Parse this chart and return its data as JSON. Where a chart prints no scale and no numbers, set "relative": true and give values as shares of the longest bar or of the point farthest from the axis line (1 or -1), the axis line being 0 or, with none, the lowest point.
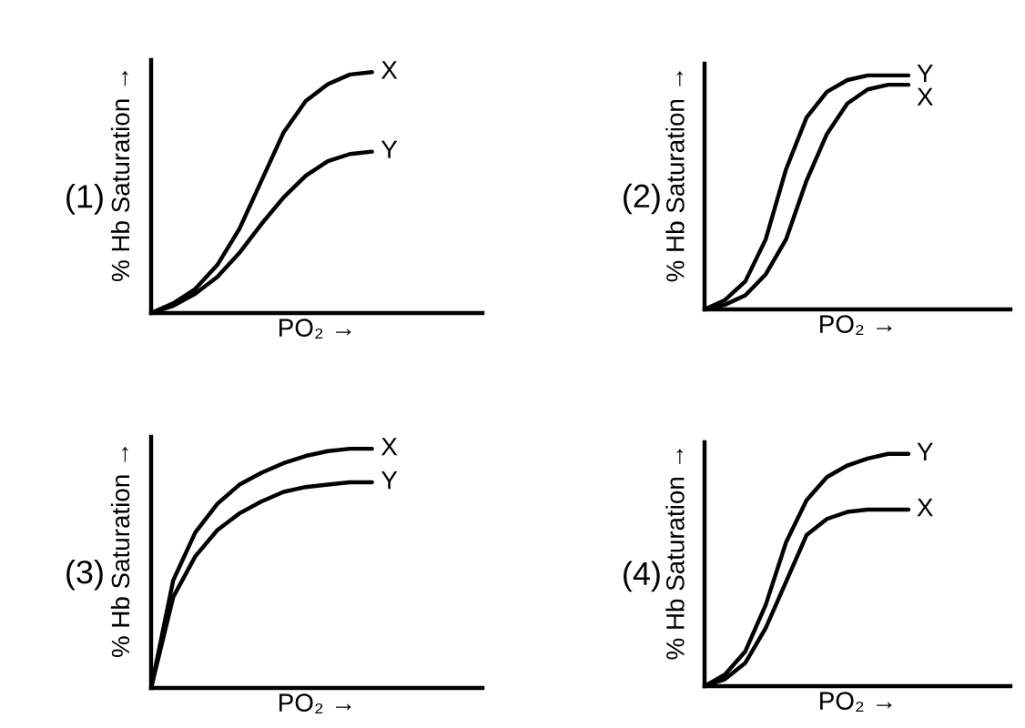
{
  "chart_data": [
    {
      "type": "line",
      "title": "(1)",
      "xlabel": "PO₂ →",
      "ylabel": "% Hb Saturation →",
      "relative": true,
      "categories": [
        null,
        null,
        null,
        null,
        null,
        null,
        null,
        null,
        null,
        null,
        null,
        null,
        null,
        null,
        null,
        null
      ],
      "series": [
        {
          "name": "X",
          "color": "#000000",
          "values": [
            0,
            0.04,
            0.1,
            0.2,
            0.35,
            0.55,
            0.75,
            0.88,
            0.95,
            0.99,
            1,
            null,
            null,
            null,
            null,
            null
          ]
        },
        {
          "name": "Y",
          "color": "#000000",
          "values": [
            0,
            0.03,
            0.08,
            0.15,
            0.25,
            0.37,
            0.48,
            0.57,
            0.63,
            0.66,
            0.67,
            null,
            null,
            null,
            null,
            null
          ]
        }
      ]
    },
    {
      "type": "line",
      "title": "(2)",
      "xlabel": "PO₂ →",
      "ylabel": "% Hb Saturation →",
      "relative": true,
      "categories": [
        null,
        null,
        null,
        null,
        null,
        null,
        null,
        null,
        null,
        null,
        null,
        null,
        null,
        null,
        null,
        null
      ],
      "series": [
        {
          "name": "Y",
          "color": "#000000",
          "values": [
            0,
            0.04,
            0.12,
            0.3,
            0.6,
            0.82,
            0.93,
            0.98,
            1,
            1,
            1,
            null,
            null,
            null,
            null,
            null
          ]
        },
        {
          "name": "X",
          "color": "#000000",
          "values": [
            0,
            0.02,
            0.06,
            0.15,
            0.3,
            0.55,
            0.75,
            0.88,
            0.94,
            0.96,
            0.96,
            null,
            null,
            null,
            null,
            null
          ]
        }
      ]
    },
    {
      "type": "line",
      "title": "(3)",
      "xlabel": "PO₂ →",
      "ylabel": "% Hb Saturation →",
      "relative": true,
      "categories": [
        null,
        null,
        null,
        null,
        null,
        null,
        null,
        null,
        null,
        null,
        null,
        null,
        null,
        null,
        null,
        null
      ],
      "series": [
        {
          "name": "X",
          "color": "#000000",
          "values": [
            0,
            0.45,
            0.65,
            0.77,
            0.85,
            0.9,
            0.94,
            0.97,
            0.99,
            1,
            1,
            null,
            null,
            null,
            null,
            null
          ]
        },
        {
          "name": "Y",
          "color": "#000000",
          "values": [
            0,
            0.38,
            0.55,
            0.66,
            0.73,
            0.78,
            0.82,
            0.84,
            0.85,
            0.86,
            0.86,
            null,
            null,
            null,
            null,
            null
          ]
        }
      ]
    },
    {
      "type": "line",
      "title": "(4)",
      "xlabel": "PO₂ →",
      "ylabel": "% Hb Saturation →",
      "relative": true,
      "categories": [
        null,
        null,
        null,
        null,
        null,
        null,
        null,
        null,
        null,
        null,
        null,
        null,
        null,
        null,
        null,
        null
      ],
      "series": [
        {
          "name": "Y",
          "color": "#000000",
          "values": [
            0,
            0.05,
            0.15,
            0.35,
            0.62,
            0.8,
            0.9,
            0.95,
            0.98,
            1,
            1,
            null,
            null,
            null,
            null,
            null
          ]
        },
        {
          "name": "X",
          "color": "#000000",
          "values": [
            0,
            0.03,
            0.1,
            0.25,
            0.45,
            0.65,
            0.72,
            0.75,
            0.76,
            0.76,
            0.76,
            null,
            null,
            null,
            null,
            null
          ]
        }
      ]
    }
  ]
}
